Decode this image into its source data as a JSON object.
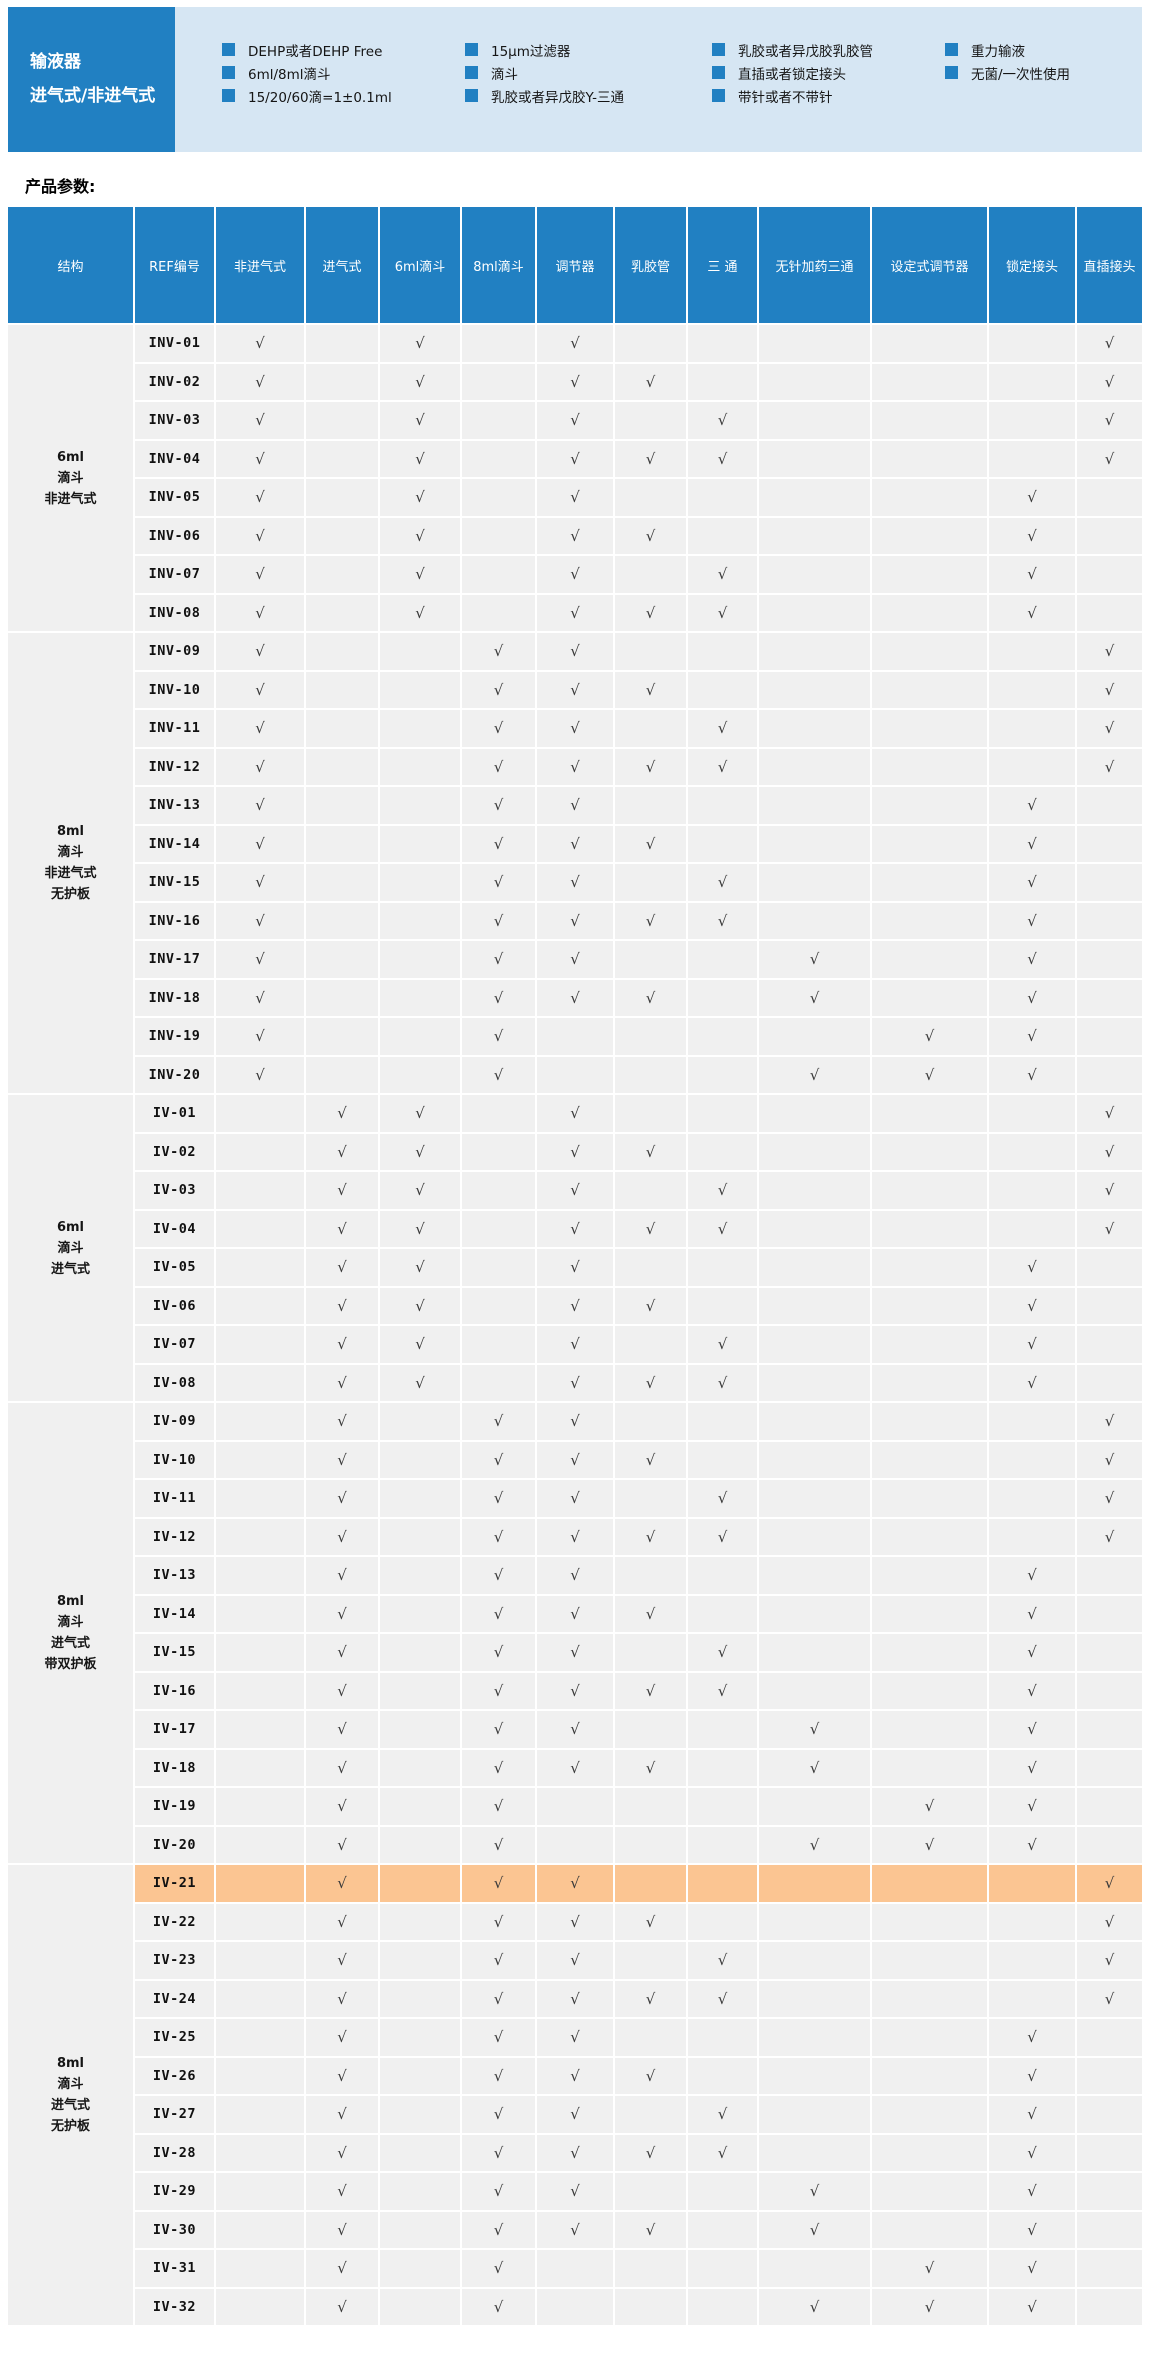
{
  "banner": {
    "title_line1": "输液器",
    "title_line2": "进气式/非进气式",
    "feature_columns": [
      {
        "items": [
          "DEHP或者DEHP Free",
          "6ml/8ml滴斗",
          "15/20/60滴=1±0.1ml"
        ]
      },
      {
        "items": [
          "15μm过滤器",
          "滴斗",
          "乳胶或者异戊胶Y-三通"
        ]
      },
      {
        "items": [
          "乳胶或者异戊胶乳胶管",
          "直插或者锁定接头",
          "带针或者不带针"
        ]
      },
      {
        "items": [
          "重力输液",
          "无菌/一次性使用"
        ]
      }
    ]
  },
  "section_title": "产品参数:",
  "table": {
    "check_glyph": "√",
    "columns": [
      "结构",
      "REF编号",
      "非进气式",
      "进气式",
      "6ml滴斗",
      "8ml滴斗",
      "调节器",
      "乳胶管",
      "三 通",
      "无针加药三通",
      "设定式调节器",
      "锁定接头",
      "直插接头"
    ],
    "highlighted_ref": "IV-21",
    "groups": [
      {
        "label_lines": [
          "6ml",
          "滴斗",
          "非进气式"
        ],
        "rows": [
          {
            "ref": "INV-01",
            "checks": [
              0,
              2,
              4,
              10
            ]
          },
          {
            "ref": "INV-02",
            "checks": [
              0,
              2,
              4,
              5,
              10
            ]
          },
          {
            "ref": "INV-03",
            "checks": [
              0,
              2,
              4,
              6,
              10
            ]
          },
          {
            "ref": "INV-04",
            "checks": [
              0,
              2,
              4,
              5,
              6,
              10
            ]
          },
          {
            "ref": "INV-05",
            "checks": [
              0,
              2,
              4,
              9
            ]
          },
          {
            "ref": "INV-06",
            "checks": [
              0,
              2,
              4,
              5,
              9
            ]
          },
          {
            "ref": "INV-07",
            "checks": [
              0,
              2,
              4,
              6,
              9
            ]
          },
          {
            "ref": "INV-08",
            "checks": [
              0,
              2,
              4,
              5,
              6,
              9
            ]
          }
        ]
      },
      {
        "label_lines": [
          "8ml",
          "滴斗",
          "非进气式",
          "无护板"
        ],
        "rows": [
          {
            "ref": "INV-09",
            "checks": [
              0,
              3,
              4,
              10
            ]
          },
          {
            "ref": "INV-10",
            "checks": [
              0,
              3,
              4,
              5,
              10
            ]
          },
          {
            "ref": "INV-11",
            "checks": [
              0,
              3,
              4,
              6,
              10
            ]
          },
          {
            "ref": "INV-12",
            "checks": [
              0,
              3,
              4,
              5,
              6,
              10
            ]
          },
          {
            "ref": "INV-13",
            "checks": [
              0,
              3,
              4,
              9
            ]
          },
          {
            "ref": "INV-14",
            "checks": [
              0,
              3,
              4,
              5,
              9
            ]
          },
          {
            "ref": "INV-15",
            "checks": [
              0,
              3,
              4,
              6,
              9
            ]
          },
          {
            "ref": "INV-16",
            "checks": [
              0,
              3,
              4,
              5,
              6,
              9
            ]
          },
          {
            "ref": "INV-17",
            "checks": [
              0,
              3,
              4,
              7,
              9
            ]
          },
          {
            "ref": "INV-18",
            "checks": [
              0,
              3,
              4,
              5,
              7,
              9
            ]
          },
          {
            "ref": "INV-19",
            "checks": [
              0,
              3,
              8,
              9
            ]
          },
          {
            "ref": "INV-20",
            "checks": [
              0,
              3,
              7,
              8,
              9
            ]
          }
        ]
      },
      {
        "label_lines": [
          "6ml",
          "滴斗",
          "进气式"
        ],
        "rows": [
          {
            "ref": "IV-01",
            "checks": [
              1,
              2,
              4,
              10
            ]
          },
          {
            "ref": "IV-02",
            "checks": [
              1,
              2,
              4,
              5,
              10
            ]
          },
          {
            "ref": "IV-03",
            "checks": [
              1,
              2,
              4,
              6,
              10
            ]
          },
          {
            "ref": "IV-04",
            "checks": [
              1,
              2,
              4,
              5,
              6,
              10
            ]
          },
          {
            "ref": "IV-05",
            "checks": [
              1,
              2,
              4,
              9
            ]
          },
          {
            "ref": "IV-06",
            "checks": [
              1,
              2,
              4,
              5,
              9
            ]
          },
          {
            "ref": "IV-07",
            "checks": [
              1,
              2,
              4,
              6,
              9
            ]
          },
          {
            "ref": "IV-08",
            "checks": [
              1,
              2,
              4,
              5,
              6,
              9
            ]
          }
        ]
      },
      {
        "label_lines": [
          "8ml",
          "滴斗",
          "进气式",
          "带双护板"
        ],
        "rows": [
          {
            "ref": "IV-09",
            "checks": [
              1,
              3,
              4,
              10
            ]
          },
          {
            "ref": "IV-10",
            "checks": [
              1,
              3,
              4,
              5,
              10
            ]
          },
          {
            "ref": "IV-11",
            "checks": [
              1,
              3,
              4,
              6,
              10
            ]
          },
          {
            "ref": "IV-12",
            "checks": [
              1,
              3,
              4,
              5,
              6,
              10
            ]
          },
          {
            "ref": "IV-13",
            "checks": [
              1,
              3,
              4,
              9
            ]
          },
          {
            "ref": "IV-14",
            "checks": [
              1,
              3,
              4,
              5,
              9
            ]
          },
          {
            "ref": "IV-15",
            "checks": [
              1,
              3,
              4,
              6,
              9
            ]
          },
          {
            "ref": "IV-16",
            "checks": [
              1,
              3,
              4,
              5,
              6,
              9
            ]
          },
          {
            "ref": "IV-17",
            "checks": [
              1,
              3,
              4,
              7,
              9
            ]
          },
          {
            "ref": "IV-18",
            "checks": [
              1,
              3,
              4,
              5,
              7,
              9
            ]
          },
          {
            "ref": "IV-19",
            "checks": [
              1,
              3,
              8,
              9
            ]
          },
          {
            "ref": "IV-20",
            "checks": [
              1,
              3,
              7,
              8,
              9
            ]
          }
        ]
      },
      {
        "label_lines": [
          "8ml",
          "滴斗",
          "进气式",
          "无护板"
        ],
        "rows": [
          {
            "ref": "IV-21",
            "checks": [
              1,
              3,
              4,
              10
            ],
            "highlight": true
          },
          {
            "ref": "IV-22",
            "checks": [
              1,
              3,
              4,
              5,
              10
            ]
          },
          {
            "ref": "IV-23",
            "checks": [
              1,
              3,
              4,
              6,
              10
            ]
          },
          {
            "ref": "IV-24",
            "checks": [
              1,
              3,
              4,
              5,
              6,
              10
            ]
          },
          {
            "ref": "IV-25",
            "checks": [
              1,
              3,
              4,
              9
            ]
          },
          {
            "ref": "IV-26",
            "checks": [
              1,
              3,
              4,
              5,
              9
            ]
          },
          {
            "ref": "IV-27",
            "checks": [
              1,
              3,
              4,
              6,
              9
            ]
          },
          {
            "ref": "IV-28",
            "checks": [
              1,
              3,
              4,
              5,
              6,
              9
            ]
          },
          {
            "ref": "IV-29",
            "checks": [
              1,
              3,
              4,
              7,
              9
            ]
          },
          {
            "ref": "IV-30",
            "checks": [
              1,
              3,
              4,
              5,
              7,
              9
            ]
          },
          {
            "ref": "IV-31",
            "checks": [
              1,
              3,
              8,
              9
            ]
          },
          {
            "ref": "IV-32",
            "checks": [
              1,
              3,
              7,
              8,
              9
            ]
          }
        ]
      }
    ]
  },
  "colors": {
    "accent_blue": "#2180c2",
    "banner_panel_blue": "#d6e6f3",
    "table_cell_gray": "#f0f0f0",
    "highlight_orange": "#fbc592",
    "check_dark": "#3a3a3a",
    "header_text_white": "#ffffff"
  }
}
